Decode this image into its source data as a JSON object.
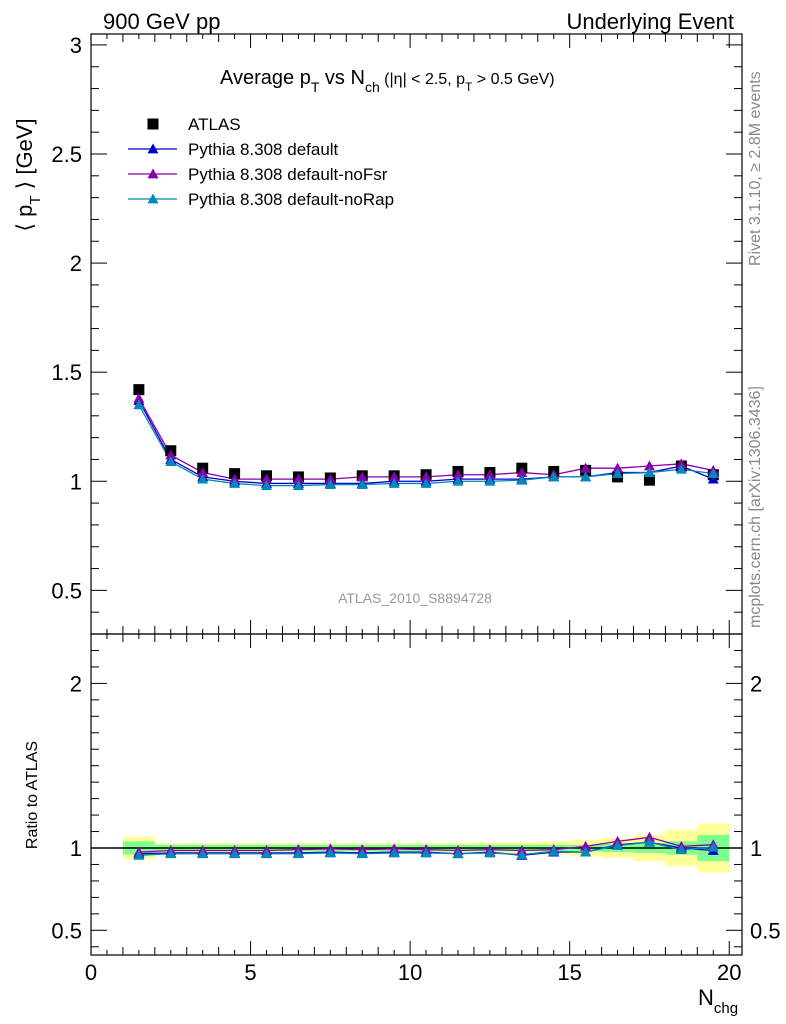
{
  "header": {
    "left": "900 GeV pp",
    "right": "Underlying Event"
  },
  "side_labels": {
    "rivet": "Rivet 3.1.10, ≥ 2.8M events",
    "mcplots": "mcplots.cern.ch [arXiv:1306.3436]"
  },
  "chart_data": {
    "type": "scatter",
    "title_parts": {
      "a": "Average p",
      "a_sub": "T",
      "b": " vs N",
      "b_sub": "ch",
      "c": " (|η| < 2.5, p",
      "c_sub": "T",
      "d": " > 0.5 GeV)"
    },
    "analysis_label": "ATLAS_2010_S8894728",
    "ylabel_parts": {
      "a": "⟨ p",
      "sub": "T",
      "b": " ⟩ [GeV]"
    },
    "xlabel_parts": {
      "a": "N",
      "sub": "chg"
    },
    "ratio_ylabel": "Ratio to ATLAS",
    "xlim": [
      0,
      20.4
    ],
    "ylim_main": [
      0.3,
      3.05
    ],
    "ylim_ratio": [
      0.35,
      2.3
    ],
    "x_ticks": [
      0,
      5,
      10,
      15,
      20
    ],
    "x_tick_labels": [
      "0",
      "5",
      "10",
      "15",
      "20"
    ],
    "main_y_ticks": [
      0.5,
      1,
      1.5,
      2,
      2.5,
      3
    ],
    "main_y_tick_labels": [
      "0.5",
      "1",
      "1.5",
      "2",
      "2.5",
      "3"
    ],
    "ratio_y_ticks": [
      0.5,
      1,
      2
    ],
    "ratio_y_tick_labels": [
      "0.5",
      "1",
      "2"
    ],
    "legend_position": "top-left",
    "x": [
      1.5,
      2.5,
      3.5,
      4.5,
      5.5,
      6.5,
      7.5,
      8.5,
      9.5,
      10.5,
      11.5,
      12.5,
      13.5,
      14.5,
      15.5,
      16.5,
      17.5,
      18.5,
      19.5
    ],
    "data": {
      "name": "ATLAS",
      "color": "#000000",
      "values": [
        1.42,
        1.14,
        1.06,
        1.035,
        1.025,
        1.02,
        1.015,
        1.025,
        1.025,
        1.03,
        1.045,
        1.04,
        1.06,
        1.045,
        1.05,
        1.02,
        1.005,
        1.07,
        1.03
      ]
    },
    "series": [
      {
        "name": "Pythia 8.308 default",
        "color": "#0000cc",
        "values": [
          1.37,
          1.1,
          1.02,
          1.0,
          0.99,
          0.99,
          0.99,
          0.99,
          1.0,
          1.0,
          1.01,
          1.01,
          1.01,
          1.02,
          1.02,
          1.04,
          1.04,
          1.07,
          1.01
        ],
        "ratio": [
          0.965,
          0.97,
          0.97,
          0.97,
          0.97,
          0.97,
          0.975,
          0.97,
          0.975,
          0.975,
          0.965,
          0.975,
          0.955,
          0.975,
          0.975,
          1.02,
          1.035,
          1.0,
          0.985
        ]
      },
      {
        "name": "Pythia 8.308 default-noFsr",
        "color": "#8800aa",
        "values": [
          1.38,
          1.12,
          1.04,
          1.01,
          1.01,
          1.01,
          1.01,
          1.02,
          1.02,
          1.02,
          1.03,
          1.03,
          1.04,
          1.03,
          1.06,
          1.06,
          1.07,
          1.08,
          1.05
        ],
        "ratio": [
          0.975,
          0.985,
          0.985,
          0.985,
          0.985,
          0.99,
          0.995,
          0.99,
          0.995,
          0.99,
          0.985,
          0.99,
          0.985,
          0.99,
          1.01,
          1.04,
          1.065,
          1.01,
          1.02
        ]
      },
      {
        "name": "Pythia 8.308 default-noRap",
        "color": "#0088bb",
        "values": [
          1.35,
          1.09,
          1.01,
          0.99,
          0.98,
          0.98,
          0.985,
          0.985,
          0.99,
          0.99,
          1.0,
          1.0,
          1.005,
          1.02,
          1.02,
          1.035,
          1.04,
          1.055,
          1.035
        ],
        "ratio": [
          0.955,
          0.965,
          0.965,
          0.965,
          0.965,
          0.965,
          0.97,
          0.965,
          0.97,
          0.97,
          0.965,
          0.97,
          0.96,
          0.98,
          0.975,
          1.015,
          1.035,
          0.99,
          1.005
        ]
      }
    ],
    "uncertainty_bands": {
      "x_edges": [
        1,
        2,
        3,
        4,
        5,
        6,
        7,
        8,
        9,
        10,
        11,
        12,
        13,
        14,
        15,
        16,
        17,
        18,
        19,
        20
      ],
      "inner_halfwidth": [
        0.04,
        0.02,
        0.02,
        0.02,
        0.02,
        0.02,
        0.02,
        0.02,
        0.02,
        0.02,
        0.02,
        0.02,
        0.02,
        0.02,
        0.02,
        0.025,
        0.03,
        0.04,
        0.08
      ],
      "outer_halfwidth": [
        0.07,
        0.03,
        0.03,
        0.03,
        0.03,
        0.03,
        0.03,
        0.03,
        0.03,
        0.03,
        0.03,
        0.035,
        0.035,
        0.04,
        0.05,
        0.06,
        0.08,
        0.11,
        0.15
      ],
      "inner_color": "#7fff8f",
      "outer_color": "#ffff99"
    }
  }
}
